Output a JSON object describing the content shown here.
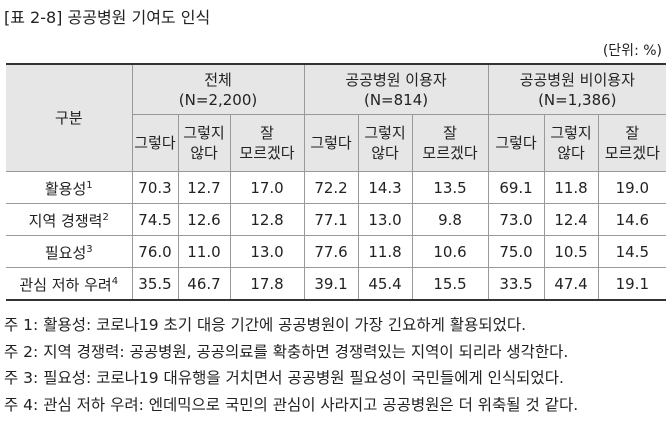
{
  "header": {
    "title": "[표 2-8] 공공병원 기여도 인식",
    "unit": "(단위: %)"
  },
  "table": {
    "corner": "구분",
    "groups": [
      {
        "name": "전체",
        "n": "(N=2,200)"
      },
      {
        "name": "공공병원 이용자",
        "n": "(N=814)"
      },
      {
        "name": "공공병원 비이용자",
        "n": "(N=1,386)"
      }
    ],
    "subheaders": [
      "그렇다",
      "그렇지\n않다",
      "잘\n모르겠다"
    ],
    "rows": [
      {
        "label": "활용성",
        "note": "1",
        "values": [
          "70.3",
          "12.7",
          "17.0",
          "72.2",
          "14.3",
          "13.5",
          "69.1",
          "11.8",
          "19.0"
        ]
      },
      {
        "label": "지역 경쟁력",
        "note": "2",
        "values": [
          "74.5",
          "12.6",
          "12.8",
          "77.1",
          "13.0",
          "9.8",
          "73.0",
          "12.4",
          "14.6"
        ]
      },
      {
        "label": "필요성",
        "note": "3",
        "values": [
          "76.0",
          "11.0",
          "13.0",
          "77.6",
          "11.8",
          "10.6",
          "75.0",
          "10.5",
          "14.5"
        ]
      },
      {
        "label": "관심 저하 우려",
        "note": "4",
        "values": [
          "35.5",
          "46.7",
          "17.8",
          "39.1",
          "45.4",
          "15.5",
          "33.5",
          "47.4",
          "19.1"
        ]
      }
    ]
  },
  "notes": [
    "주 1: 활용성: 코로나19 초기 대응 기간에 공공병원이 가장 긴요하게 활용되었다.",
    "주 2: 지역 경쟁력: 공공병원, 공공의료를 확충하면 경쟁력있는 지역이 되리라 생각한다.",
    "주 3: 필요성: 코로나19 대유행을 거치면서 공공병원 필요성이 국민들에게 인식되었다.",
    "주 4: 관심 저하 우려: 엔데믹으로 국민의 관심이 사라지고 공공병원은 더 위축될 것 같다."
  ]
}
